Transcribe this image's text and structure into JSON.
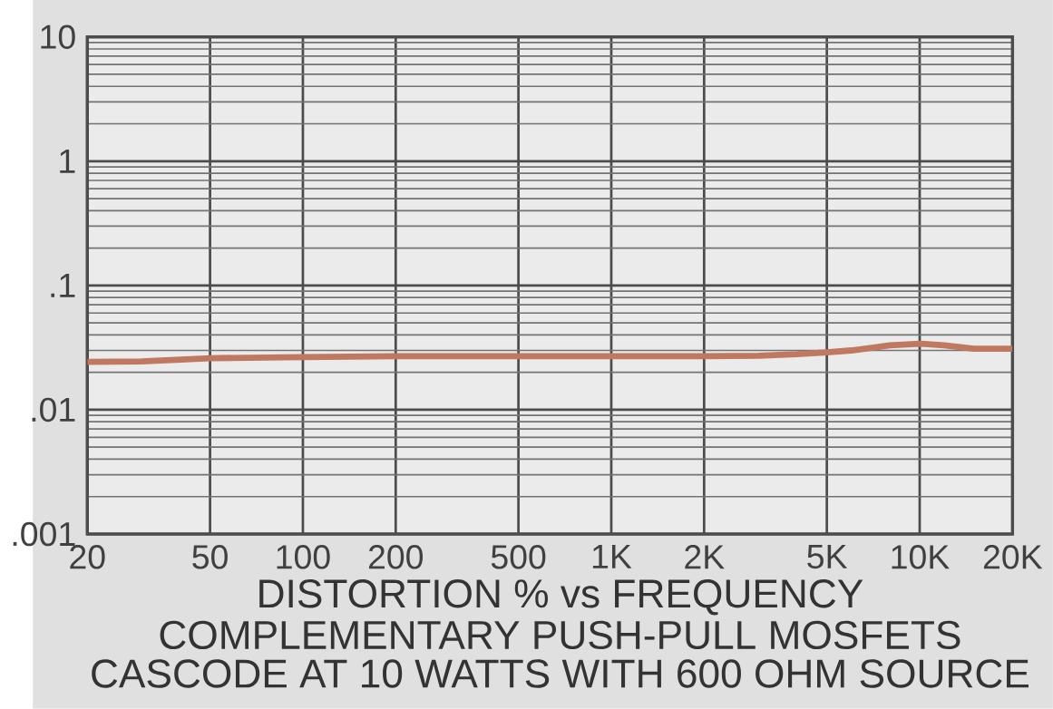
{
  "chart_data": {
    "type": "line",
    "title": "DISTORTION % vs FREQUENCY",
    "subtitle": "COMPLEMENTARY PUSH-PULL MOSFETS",
    "annotations": [
      "CASCODE AT 10 WATTS WITH 600 OHM SOURCE"
    ],
    "log": "xy",
    "grid": true,
    "xlim": [
      20,
      20000
    ],
    "ylim": [
      0.001,
      10
    ],
    "xticks": [
      20,
      50,
      100,
      200,
      500,
      {
        "value": 1000,
        "label": "1K"
      },
      {
        "value": 2000,
        "label": "2K"
      },
      {
        "value": 5000,
        "label": "5K"
      },
      {
        "value": 10000,
        "label": "10K"
      },
      {
        "value": 20000,
        "label": "20K"
      }
    ],
    "yticks": [
      {
        "value": 0.001,
        "label": ".001"
      },
      {
        "value": 0.01,
        "label": ".01"
      },
      {
        "value": 0.1,
        "label": ".1"
      },
      1,
      10
    ],
    "x": [
      20,
      30,
      50,
      100,
      200,
      500,
      1000,
      2000,
      3000,
      4000,
      5000,
      6000,
      7000,
      8000,
      10000,
      12000,
      15000,
      20000
    ],
    "series": [
      {
        "color": "#c07860",
        "values": [
          0.0243,
          0.0245,
          0.026,
          0.0265,
          0.027,
          0.027,
          0.027,
          0.027,
          0.0272,
          0.028,
          0.029,
          0.03,
          0.0315,
          0.033,
          0.034,
          0.033,
          0.031,
          0.031
        ]
      }
    ]
  }
}
